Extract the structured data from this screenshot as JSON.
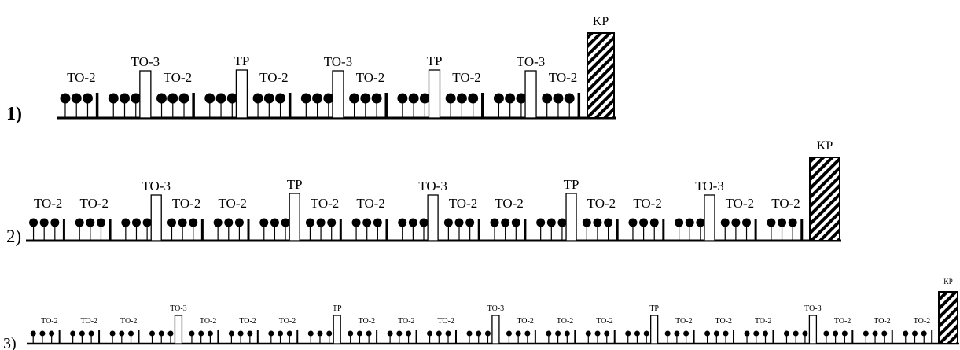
{
  "colors": {
    "ink": "#000000",
    "background": "#ffffff"
  },
  "rows": [
    {
      "label": "1)",
      "sequence": [
        "TO-2",
        "TO-3",
        "TO-2",
        "TP",
        "TO-2",
        "TO-3",
        "TO-2",
        "TP",
        "TO-2",
        "TO-3",
        "TO-2",
        "KP"
      ]
    },
    {
      "label": "2)",
      "sequence": [
        "TO-2",
        "TO-2",
        "TO-3",
        "TO-2",
        "TO-2",
        "TP",
        "TO-2",
        "TO-2",
        "TO-3",
        "TO-2",
        "TO-2",
        "TP",
        "TO-2",
        "TO-2",
        "TO-3",
        "TO-2",
        "TO-2",
        "KP"
      ]
    },
    {
      "label": "3)",
      "sequence": [
        "TO-2",
        "TO-2",
        "TO-2",
        "TO-3",
        "TO-2",
        "TO-2",
        "TO-2",
        "TP",
        "TO-2",
        "TO-2",
        "TO-2",
        "TO-3",
        "TO-2",
        "TO-2",
        "TO-2",
        "TP",
        "TO-2",
        "TO-2",
        "TO-2",
        "TO-3",
        "TO-2",
        "TO-2",
        "TO-2",
        "KP"
      ]
    }
  ]
}
